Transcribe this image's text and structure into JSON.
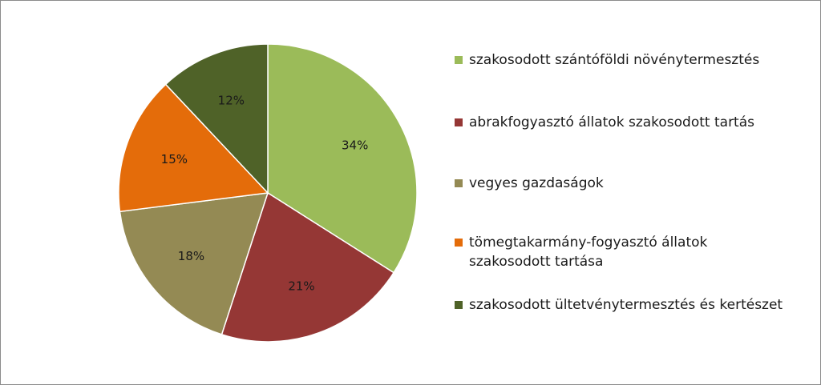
{
  "chart_data": {
    "type": "pie",
    "categories": [
      "szakosodott szántóföldi növénytermesztés",
      "abrakfogyasztó állatok szakosodott tartás",
      "vegyes gazdaságok",
      "tömegtakarmány-fogyasztó állatok szakosodott tartása",
      "szakosodott ültetvénytermesztés és kertészet"
    ],
    "values": [
      34,
      21,
      18,
      15,
      12
    ],
    "data_labels": [
      "34%",
      "21%",
      "18%",
      "15%",
      "12%"
    ],
    "colors": [
      "#9bbb59",
      "#953735",
      "#948a54",
      "#e46c0a",
      "#4f6228"
    ],
    "legend_position": "right"
  }
}
